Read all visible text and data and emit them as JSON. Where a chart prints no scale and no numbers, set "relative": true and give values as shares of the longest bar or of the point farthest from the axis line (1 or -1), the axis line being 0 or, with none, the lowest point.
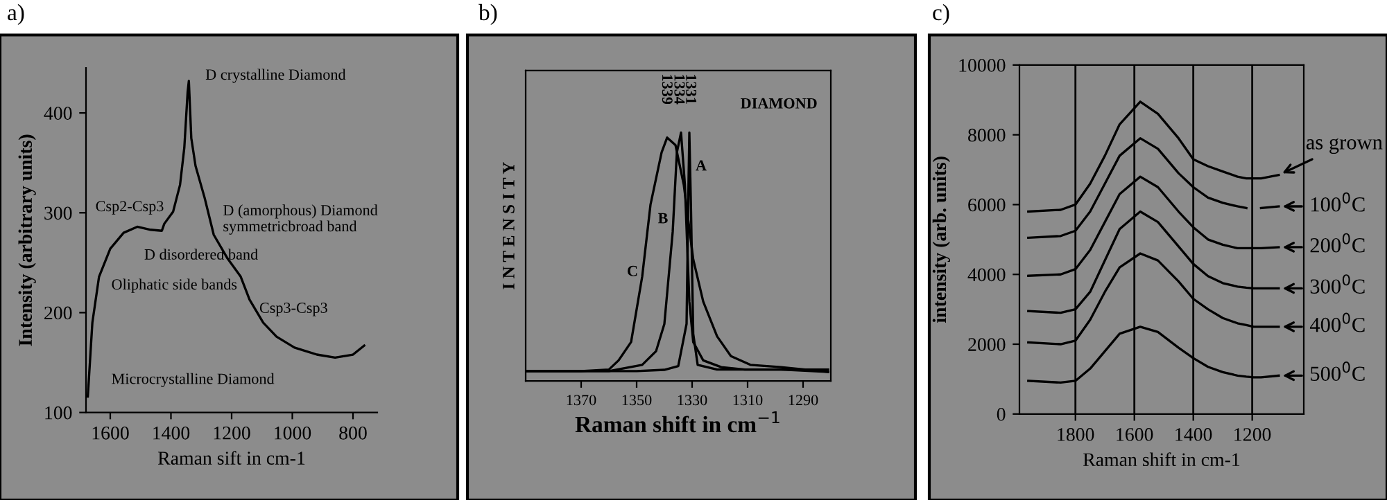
{
  "chart_data": [
    {
      "type": "line",
      "title": "a)",
      "xlabel": "Raman sift in cm-1",
      "ylabel": "Intensity (arbitrary units)",
      "x": [
        1674,
        1659,
        1637,
        1600,
        1556,
        1511,
        1467,
        1430,
        1422,
        1393,
        1370,
        1356,
        1345,
        1341,
        1333,
        1319,
        1289,
        1259,
        1215,
        1170,
        1141,
        1096,
        1052,
        993,
        919,
        859,
        800,
        763
      ],
      "series": [
        {
          "color": "#000000",
          "values": [
            116,
            190,
            236,
            264,
            280,
            286,
            283,
            282,
            289,
            301,
            328,
            365,
            421,
            432,
            375,
            347,
            315,
            278,
            255,
            236,
            213,
            190,
            176,
            165,
            158,
            155,
            158,
            167
          ]
        }
      ],
      "xlim": [
        1680,
        720
      ],
      "ylim": [
        100,
        445
      ],
      "xticks": [
        1600,
        1400,
        1200,
        1000,
        800
      ],
      "yticks": [
        100,
        200,
        300,
        400
      ],
      "grid": false,
      "legend": false,
      "annotations": [
        "D crystalline Diamond",
        "Csp2-Csp3",
        "D (amorphous) Diamond\nsymmetricbroad band",
        "D disordered band",
        "Oliphatic side bands",
        "Csp3-Csp3",
        "Microcrystalline Diamond"
      ]
    },
    {
      "type": "line",
      "title": "b)",
      "xlabel": "Raman shift in cm$^{−1}$",
      "ylabel": "I N T E N S I T Y",
      "relative": true,
      "series": [
        {
          "color": "#000000",
          "x": [
            1390,
            1370,
            1360,
            1356.5,
            1352,
            1348,
            1345,
            1341,
            1339,
            1336,
            1333,
            1329.6,
            1326,
            1321,
            1316,
            1309,
            1298,
            1281
          ],
          "values": [
            0.04,
            0.04,
            0.046,
            0.083,
            0.157,
            0.42,
            0.71,
            0.92,
            0.98,
            0.95,
            0.79,
            0.49,
            0.32,
            0.18,
            0.1,
            0.065,
            0.056,
            0.037
          ]
        },
        {
          "color": "#000000",
          "x": [
            1390,
            1360,
            1348,
            1343,
            1340,
            1337,
            1335.5,
            1334,
            1332.6,
            1331,
            1329.6,
            1326,
            1319.5,
            1311,
            1298,
            1281
          ],
          "values": [
            0.04,
            0.04,
            0.065,
            0.12,
            0.23,
            0.6,
            0.92,
            1.0,
            0.79,
            0.32,
            0.157,
            0.083,
            0.056,
            0.046,
            0.046,
            0.037
          ]
        },
        {
          "color": "#000000",
          "x": [
            1390,
            1350,
            1340,
            1335,
            1332,
            1331.3,
            1331,
            1330.4,
            1329.6,
            1328,
            1321,
            1306,
            1281
          ],
          "values": [
            0.04,
            0.04,
            0.045,
            0.06,
            0.23,
            0.79,
            1.0,
            0.69,
            0.19,
            0.065,
            0.046,
            0.046,
            0.046
          ]
        }
      ],
      "xlim": [
        1390,
        1280
      ],
      "xticks": [
        1370,
        1350,
        1330,
        1310,
        1290
      ],
      "grid": false,
      "legend": false,
      "annotations": [
        "1339",
        "1334",
        "1331",
        "DIAMOND",
        "A",
        "B",
        "C"
      ]
    },
    {
      "type": "line",
      "title": "c)",
      "xlabel": "Raman shift in cm-1",
      "ylabel": "intensity (arb. units)",
      "x": [
        1960,
        1850,
        1800,
        1750,
        1700,
        1650,
        1580,
        1520,
        1450,
        1400,
        1350,
        1300,
        1250,
        1220,
        1195,
        1170,
        1110
      ],
      "series": [
        {
          "name": "as grown",
          "color": "#000000",
          "values": [
            5800,
            5850,
            6000,
            6600,
            7400,
            8300,
            8950,
            8600,
            7900,
            7300,
            7100,
            6950,
            6800,
            6750,
            6750,
            6750,
            6850
          ]
        },
        {
          "name": "100$^{0}$C",
          "color": "#000000",
          "values": [
            5050,
            5100,
            5250,
            5800,
            6600,
            7400,
            7900,
            7600,
            6900,
            6500,
            6200,
            6050,
            5950,
            5900,
            null,
            5900,
            5950
          ]
        },
        {
          "name": "200$^{0}$C",
          "color": "#000000",
          "values": [
            3960,
            4000,
            4150,
            4700,
            5500,
            6300,
            6800,
            6500,
            5800,
            5350,
            5000,
            4850,
            4750,
            4750,
            4750,
            4750,
            4780
          ]
        },
        {
          "name": "300$^{0}$C",
          "color": "#000000",
          "values": [
            2950,
            2900,
            3000,
            3500,
            4400,
            5300,
            5800,
            5500,
            4800,
            4300,
            3950,
            3750,
            3650,
            3620,
            3600,
            3600,
            3600
          ]
        },
        {
          "name": "400$^{0}$C",
          "color": "#000000",
          "values": [
            2050,
            2000,
            2100,
            2700,
            3500,
            4200,
            4600,
            4400,
            3800,
            3300,
            3000,
            2750,
            2600,
            2550,
            2500,
            2500,
            2500
          ]
        },
        {
          "name": "500$^{0}$C",
          "color": "#000000",
          "values": [
            950,
            900,
            950,
            1300,
            1800,
            2300,
            2500,
            2350,
            1900,
            1600,
            1350,
            1200,
            1100,
            1070,
            1050,
            1050,
            1100
          ]
        }
      ],
      "xlim": [
        1990,
        1025
      ],
      "ylim": [
        0,
        10000
      ],
      "xticks": [
        1800,
        1600,
        1400,
        1200
      ],
      "yticks": [
        0,
        2000,
        4000,
        6000,
        8000,
        10000
      ],
      "grid": "x",
      "legend": "right"
    }
  ]
}
